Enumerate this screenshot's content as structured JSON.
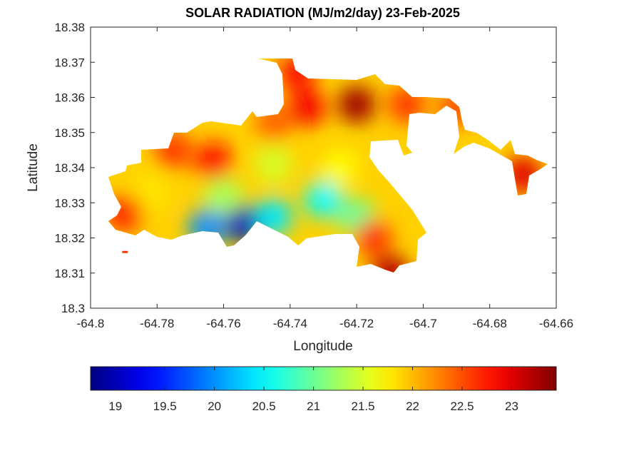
{
  "chart_data": {
    "type": "heatmap",
    "title": "SOLAR RADIATION (MJ/m2/day) 23-Feb-2025",
    "xlabel": "Longitude",
    "ylabel": "Latitude",
    "xlim": [
      -64.8,
      -64.66
    ],
    "ylim": [
      18.3,
      18.38
    ],
    "xticks": [
      "-64.8",
      "-64.78",
      "-64.76",
      "-64.74",
      "-64.72",
      "-64.7",
      "-64.68",
      "-64.66"
    ],
    "yticks": [
      "18.3",
      "18.31",
      "18.32",
      "18.33",
      "18.34",
      "18.35",
      "18.36",
      "18.37",
      "18.38"
    ],
    "colormap": "jet",
    "colorbar": {
      "location": "below",
      "range": [
        18.75,
        23.45
      ],
      "ticks": [
        "19",
        "19.5",
        "20",
        "20.5",
        "21",
        "21.5",
        "22",
        "22.5",
        "23"
      ]
    },
    "hotspots": [
      {
        "lon": -64.754,
        "lat": 18.324,
        "value": 19.0
      },
      {
        "lon": -64.765,
        "lat": 18.323,
        "value": 20.0
      },
      {
        "lon": -64.745,
        "lat": 18.326,
        "value": 20.4
      },
      {
        "lon": -64.73,
        "lat": 18.331,
        "value": 20.5
      },
      {
        "lon": -64.76,
        "lat": 18.332,
        "value": 21.3
      },
      {
        "lon": -64.72,
        "lat": 18.326,
        "value": 21.0
      },
      {
        "lon": -64.745,
        "lat": 18.341,
        "value": 21.5
      },
      {
        "lon": -64.725,
        "lat": 18.34,
        "value": 21.7
      },
      {
        "lon": -64.782,
        "lat": 18.333,
        "value": 21.8
      },
      {
        "lon": -64.763,
        "lat": 18.342,
        "value": 22.8
      },
      {
        "lon": -64.79,
        "lat": 18.327,
        "value": 22.7
      },
      {
        "lon": -64.735,
        "lat": 18.357,
        "value": 22.9
      },
      {
        "lon": -64.72,
        "lat": 18.358,
        "value": 23.3
      },
      {
        "lon": -64.738,
        "lat": 18.367,
        "value": 22.8
      },
      {
        "lon": -64.71,
        "lat": 18.31,
        "value": 23.2
      },
      {
        "lon": -64.715,
        "lat": 18.32,
        "value": 22.6
      },
      {
        "lon": -64.69,
        "lat": 18.357,
        "value": 22.5
      },
      {
        "lon": -64.705,
        "lat": 18.358,
        "value": 22.6
      },
      {
        "lon": -64.67,
        "lat": 18.338,
        "value": 23.0
      },
      {
        "lon": -64.745,
        "lat": 18.353,
        "value": 22.4
      },
      {
        "lon": -64.775,
        "lat": 18.345,
        "value": 22.6
      }
    ],
    "background_value": 21.9
  }
}
